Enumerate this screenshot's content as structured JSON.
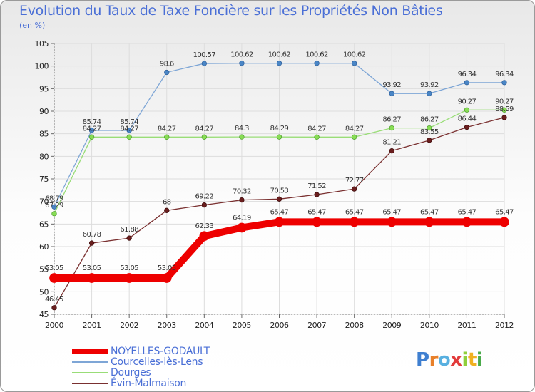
{
  "title": "Evolution du Taux de Taxe Foncière sur les Propriétés Non Bâties",
  "subtitle": "(en %)",
  "logo": "Proxiti",
  "chart_data": {
    "type": "line",
    "title": "Evolution du Taux de Taxe Foncière sur les Propriétés Non Bâties",
    "ylabel": "(en %)",
    "xlabel": "",
    "ylim": [
      45,
      105
    ],
    "yticks": [
      45,
      50,
      55,
      60,
      65,
      70,
      75,
      80,
      85,
      90,
      95,
      100,
      105
    ],
    "grid": true,
    "categories": [
      "2000",
      "2001",
      "2002",
      "2003",
      "2004",
      "2005",
      "2006",
      "2007",
      "2008",
      "2009",
      "2010",
      "2011",
      "2012"
    ],
    "series": [
      {
        "name": "NOYELLES-GODAULT",
        "color": "#ee0000",
        "values": [
          53.05,
          53.05,
          53.05,
          53.05,
          62.33,
          64.19,
          65.47,
          65.47,
          65.47,
          65.47,
          65.47,
          65.47,
          65.47
        ],
        "labels": [
          "53.05",
          "53.05",
          "53.05",
          "53.05",
          "62.33",
          "64.19",
          "65.47",
          "65.47",
          "65.47",
          "65.47",
          "65.47",
          "65.47",
          "65.47"
        ]
      },
      {
        "name": "Courcelles-lès-Lens",
        "color": "#7ea6d6",
        "values": [
          68.79,
          85.74,
          85.74,
          98.6,
          100.57,
          100.62,
          100.62,
          100.62,
          100.62,
          93.92,
          93.92,
          96.34,
          96.34
        ],
        "labels": [
          "68.79",
          "85.74",
          "85.74",
          "98.6",
          "100.57",
          "100.62",
          "100.62",
          "100.62",
          "100.62",
          "93.92",
          "93.92",
          "96.34",
          "96.34"
        ]
      },
      {
        "name": "Dourges",
        "color": "#99dd77",
        "values": [
          67.29,
          84.27,
          84.27,
          84.27,
          84.27,
          84.3,
          84.29,
          84.27,
          84.27,
          86.27,
          86.27,
          90.27,
          90.27
        ],
        "labels": [
          "67.29",
          "84.27",
          "84.27",
          "84.27",
          "84.27",
          "84.3",
          "84.29",
          "84.27",
          "84.27",
          "86.27",
          "86.27",
          "90.27",
          "90.27"
        ]
      },
      {
        "name": "Évin-Malmaison",
        "color": "#7a3030",
        "values": [
          46.45,
          60.78,
          61.88,
          68,
          69.22,
          70.32,
          70.53,
          71.52,
          72.77,
          81.21,
          83.55,
          86.44,
          88.59
        ],
        "labels": [
          "46.45",
          "60.78",
          "61.88",
          "68",
          "69.22",
          "70.32",
          "70.53",
          "71.52",
          "72.77",
          "81.21",
          "83.55",
          "86.44",
          "88.59"
        ]
      }
    ]
  }
}
